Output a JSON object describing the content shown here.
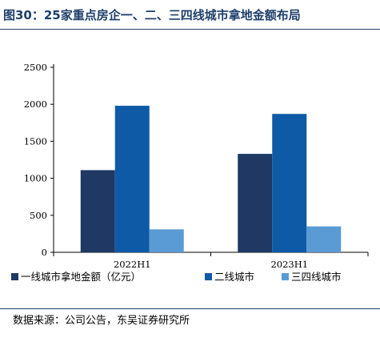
{
  "figure_title": "图30：25家重点房企一、二、三四线城市拿地金额布局",
  "source_note": "数据来源：公司公告，东吴证券研究所",
  "chart_data": {
    "type": "bar",
    "title": "",
    "xlabel": "",
    "ylabel": "",
    "categories": [
      "2022H1",
      "2023H1"
    ],
    "series": [
      {
        "name": "一线城市拿地金额（亿元）",
        "values": [
          1110,
          1330
        ],
        "color": "#1f3864"
      },
      {
        "name": "二线城市",
        "values": [
          1980,
          1870
        ],
        "color": "#0e5aa7"
      },
      {
        "name": "三四线城市",
        "values": [
          310,
          350
        ],
        "color": "#5b9bd5"
      }
    ],
    "ylim": [
      0,
      2500
    ],
    "yticks": [
      0,
      500,
      1000,
      1500,
      2000,
      2500
    ],
    "grid": false,
    "legend_position": "bottom"
  }
}
